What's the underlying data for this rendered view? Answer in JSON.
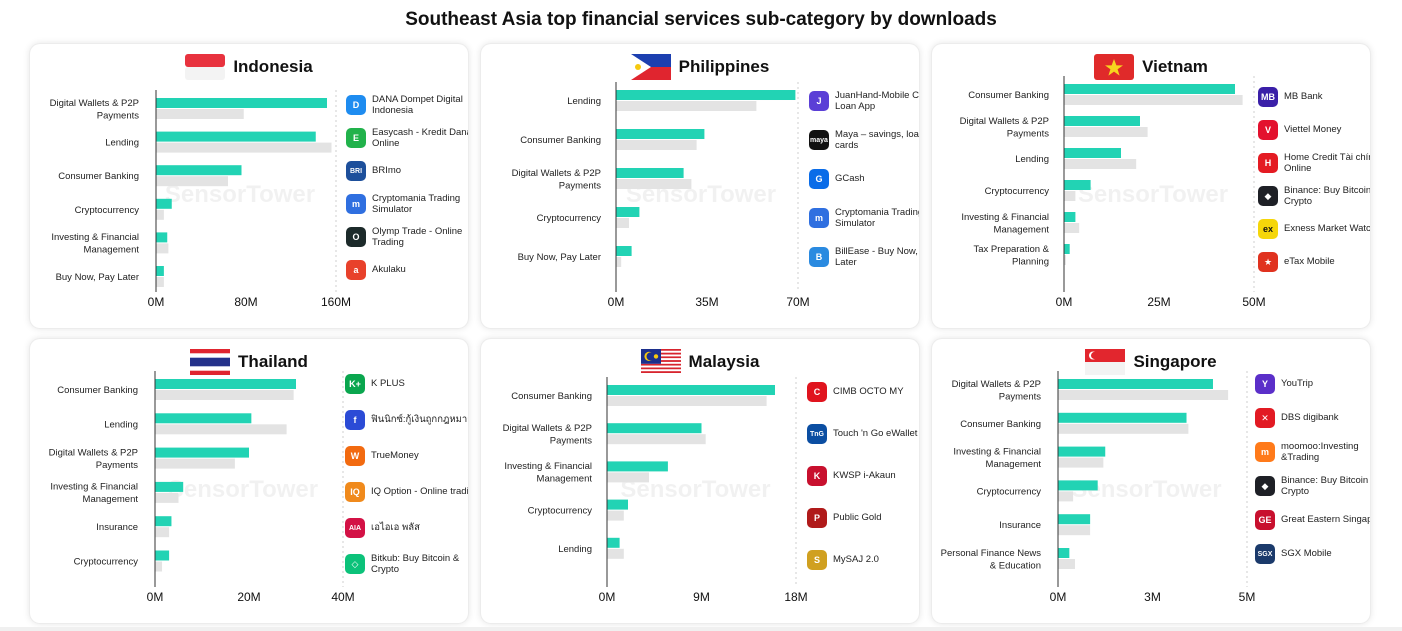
{
  "title": "Southeast Asia top financial services sub-category by downloads",
  "watermark": "SensorTower",
  "colors": {
    "current": "#22d3b4",
    "previous": "#e3e3e3",
    "axis": "#333333"
  },
  "chart_data": [
    {
      "type": "bar",
      "country": "Indonesia",
      "flag": "indonesia-flag",
      "categories": [
        "Digital Wallets & P2P Payments",
        "Lending",
        "Consumer Banking",
        "Cryptocurrency",
        "Investing & Financial Management",
        "Buy Now, Pay Later"
      ],
      "series": [
        {
          "values": [
            152,
            142,
            76,
            14,
            10,
            7
          ]
        },
        {
          "values": [
            78,
            156,
            64,
            7,
            11,
            7
          ]
        }
      ],
      "xticks": [
        "0M",
        "80M",
        "160M"
      ],
      "xlim": [
        0,
        160
      ],
      "apps": [
        {
          "name": "DANA Dompet Digital Indonesia",
          "icon": "dana-icon",
          "color": "#1e8cf0",
          "glyph": "D"
        },
        {
          "name": "Easycash - Kredit Dana Online",
          "icon": "easycash-icon",
          "color": "#21b24b",
          "glyph": "E"
        },
        {
          "name": "BRImo",
          "icon": "brimo-icon",
          "color": "#1d4f9b",
          "glyph": "BRI"
        },
        {
          "name": "Cryptomania Trading Simulator",
          "icon": "cryptomania-icon",
          "color": "#2f6fe0",
          "glyph": "m"
        },
        {
          "name": "Olymp Trade - Online Trading",
          "icon": "olymp-icon",
          "color": "#1c2a2a",
          "glyph": "O"
        },
        {
          "name": "Akulaku",
          "icon": "akulaku-icon",
          "color": "#e8412b",
          "glyph": "a"
        }
      ]
    },
    {
      "type": "bar",
      "country": "Philippines",
      "flag": "philippines-flag",
      "categories": [
        "Lending",
        "Consumer Banking",
        "Digital Wallets & P2P Payments",
        "Cryptocurrency",
        "Buy Now, Pay Later"
      ],
      "series": [
        {
          "values": [
            69,
            34,
            26,
            9,
            6
          ]
        },
        {
          "values": [
            54,
            31,
            29,
            5,
            2
          ]
        }
      ],
      "xticks": [
        "0M",
        "35M",
        "70M"
      ],
      "xlim": [
        0,
        70
      ],
      "apps": [
        {
          "name": "JuanHand-Mobile Cash Loan App",
          "icon": "juanhand-icon",
          "color": "#5b3fd6",
          "glyph": "J"
        },
        {
          "name": "Maya – savings, loans, cards",
          "icon": "maya-icon",
          "color": "#111111",
          "glyph": "maya"
        },
        {
          "name": "GCash",
          "icon": "gcash-icon",
          "color": "#0a6ce8",
          "glyph": "G"
        },
        {
          "name": "Cryptomania Trading Simulator",
          "icon": "cryptomania-icon",
          "color": "#2f6fe0",
          "glyph": "m"
        },
        {
          "name": "BillEase - Buy Now, Pay Later",
          "icon": "billease-icon",
          "color": "#2a8ae0",
          "glyph": "B"
        }
      ]
    },
    {
      "type": "bar",
      "country": "Vietnam",
      "flag": "vietnam-flag",
      "categories": [
        "Consumer Banking",
        "Digital Wallets & P2P Payments",
        "Lending",
        "Cryptocurrency",
        "Investing & Financial Management",
        "Tax Preparation & Planning"
      ],
      "series": [
        {
          "values": [
            45,
            20,
            15,
            7,
            3,
            1.5
          ]
        },
        {
          "values": [
            47,
            22,
            19,
            3,
            4,
            0.5
          ]
        }
      ],
      "xticks": [
        "0M",
        "25M",
        "50M"
      ],
      "xlim": [
        0,
        50
      ],
      "apps": [
        {
          "name": "MB Bank",
          "icon": "mbbank-icon",
          "color": "#3a1fa8",
          "glyph": "MB"
        },
        {
          "name": "Viettel Money",
          "icon": "viettel-icon",
          "color": "#e3112e",
          "glyph": "V"
        },
        {
          "name": "Home Credit Tài chính Online",
          "icon": "homecredit-icon",
          "color": "#e41b23",
          "glyph": "H"
        },
        {
          "name": "Binance: Buy Bitcoin & Crypto",
          "icon": "binance-icon",
          "color": "#1e2026",
          "glyph": "◆"
        },
        {
          "name": "Exness Market Watch",
          "icon": "exness-icon",
          "color": "#f5d60a",
          "glyph": "ex"
        },
        {
          "name": "eTax Mobile",
          "icon": "etax-icon",
          "color": "#e0321f",
          "glyph": "★"
        }
      ]
    },
    {
      "type": "bar",
      "country": "Thailand",
      "flag": "thailand-flag",
      "categories": [
        "Consumer Banking",
        "Lending",
        "Digital Wallets & P2P Payments",
        "Investing & Financial Management",
        "Insurance",
        "Cryptocurrency"
      ],
      "series": [
        {
          "values": [
            30,
            20.5,
            20,
            6,
            3.5,
            3
          ]
        },
        {
          "values": [
            29.5,
            28,
            17,
            5,
            3,
            1.5
          ]
        }
      ],
      "xticks": [
        "0M",
        "20M",
        "40M"
      ],
      "xlim": [
        0,
        40
      ],
      "apps": [
        {
          "name": "K PLUS",
          "icon": "kplus-icon",
          "color": "#0aa64e",
          "glyph": "K+"
        },
        {
          "name": "ฟินนิกซ์:กู้เงินถูกกฎหมาย",
          "icon": "finnix-icon",
          "color": "#2b4bd6",
          "glyph": "f"
        },
        {
          "name": "TrueMoney",
          "icon": "truemoney-icon",
          "color": "#f26a10",
          "glyph": "W"
        },
        {
          "name": "IQ Option - Online trading",
          "icon": "iqoption-icon",
          "color": "#f08a1c",
          "glyph": "IQ"
        },
        {
          "name": "เอไอเอ พลัส",
          "icon": "aia-icon",
          "color": "#d31145",
          "glyph": "AIA"
        },
        {
          "name": "Bitkub: Buy Bitcoin & Crypto",
          "icon": "bitkub-icon",
          "color": "#0cc27a",
          "glyph": "◇"
        }
      ]
    },
    {
      "type": "bar",
      "country": "Malaysia",
      "flag": "malaysia-flag",
      "categories": [
        "Consumer Banking",
        "Digital Wallets & P2P Payments",
        "Investing & Financial Management",
        "Cryptocurrency",
        "Lending"
      ],
      "series": [
        {
          "values": [
            16,
            9,
            5.8,
            2,
            1.2
          ]
        },
        {
          "values": [
            15.2,
            9.4,
            4,
            1.6,
            1.6
          ]
        }
      ],
      "xticks": [
        "0M",
        "9M",
        "18M"
      ],
      "xlim": [
        0,
        18
      ],
      "apps": [
        {
          "name": "CIMB OCTO MY",
          "icon": "cimb-icon",
          "color": "#e0141e",
          "glyph": "C"
        },
        {
          "name": "Touch 'n Go eWallet",
          "icon": "tng-icon",
          "color": "#0b4ea2",
          "glyph": "TnG"
        },
        {
          "name": "KWSP i-Akaun",
          "icon": "kwsp-icon",
          "color": "#c8102e",
          "glyph": "K"
        },
        {
          "name": "Public Gold",
          "icon": "publicgold-icon",
          "color": "#b01a1a",
          "glyph": "P"
        },
        {
          "name": "MySAJ 2.0",
          "icon": "mysaj-icon",
          "color": "#d0a020",
          "glyph": "S"
        }
      ]
    },
    {
      "type": "bar",
      "country": "Singapore",
      "flag": "singapore-flag",
      "categories": [
        "Digital Wallets & P2P Payments",
        "Consumer Banking",
        "Investing & Financial Management",
        "Cryptocurrency",
        "Insurance",
        "Personal Finance News & Education"
      ],
      "series": [
        {
          "values": [
            4.1,
            3.4,
            1.25,
            1.05,
            0.85,
            0.3
          ]
        },
        {
          "values": [
            4.5,
            3.45,
            1.2,
            0.4,
            0.85,
            0.45
          ]
        }
      ],
      "xticks": [
        "0M",
        "3M",
        "5M"
      ],
      "xlim": [
        0,
        5
      ],
      "apps": [
        {
          "name": "YouTrip",
          "icon": "youtrip-icon",
          "color": "#5b2fc9",
          "glyph": "Y"
        },
        {
          "name": "DBS digibank",
          "icon": "dbs-icon",
          "color": "#e21a23",
          "glyph": "✕"
        },
        {
          "name": "moomoo:Investing &Trading",
          "icon": "moomoo-icon",
          "color": "#ff7a1a",
          "glyph": "m"
        },
        {
          "name": "Binance: Buy Bitcoin & Crypto",
          "icon": "binance-icon",
          "color": "#1e2026",
          "glyph": "◆"
        },
        {
          "name": "Great Eastern Singapore",
          "icon": "greateastern-icon",
          "color": "#c8102e",
          "glyph": "GE"
        },
        {
          "name": "SGX Mobile",
          "icon": "sgx-icon",
          "color": "#1b3a6b",
          "glyph": "SGX"
        }
      ]
    }
  ]
}
